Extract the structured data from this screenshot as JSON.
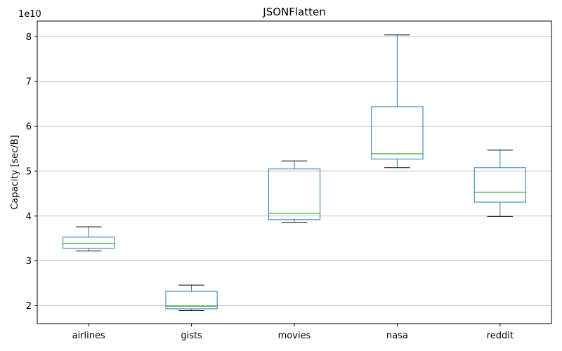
{
  "chart_data": {
    "type": "box",
    "title": "JSONFlatten",
    "xlabel": "",
    "ylabel": "Capacity [sec/B]",
    "y_exponent_label": "1e10",
    "y_multiplier": 10000000000,
    "ylim": [
      1.6,
      8.35
    ],
    "yticks": [
      2,
      3,
      4,
      5,
      6,
      7,
      8
    ],
    "grid": "y",
    "colors": {
      "box": "#1f77b4",
      "median": "#2ca02c",
      "whisker_cap": "#000000",
      "grid": "#b0b0b0"
    },
    "categories": [
      "airlines",
      "gists",
      "movies",
      "nasa",
      "reddit"
    ],
    "boxes": [
      {
        "category": "airlines",
        "min": 3.22,
        "q1": 3.28,
        "median": 3.39,
        "q3": 3.53,
        "max": 3.76
      },
      {
        "category": "gists",
        "min": 1.89,
        "q1": 1.93,
        "median": 1.99,
        "q3": 2.32,
        "max": 2.46
      },
      {
        "category": "movies",
        "min": 3.86,
        "q1": 3.92,
        "median": 4.06,
        "q3": 5.05,
        "max": 5.23
      },
      {
        "category": "nasa",
        "min": 5.08,
        "q1": 5.27,
        "median": 5.39,
        "q3": 6.44,
        "max": 8.04
      },
      {
        "category": "reddit",
        "min": 3.99,
        "q1": 4.31,
        "median": 4.53,
        "q3": 5.08,
        "max": 5.47
      }
    ]
  }
}
